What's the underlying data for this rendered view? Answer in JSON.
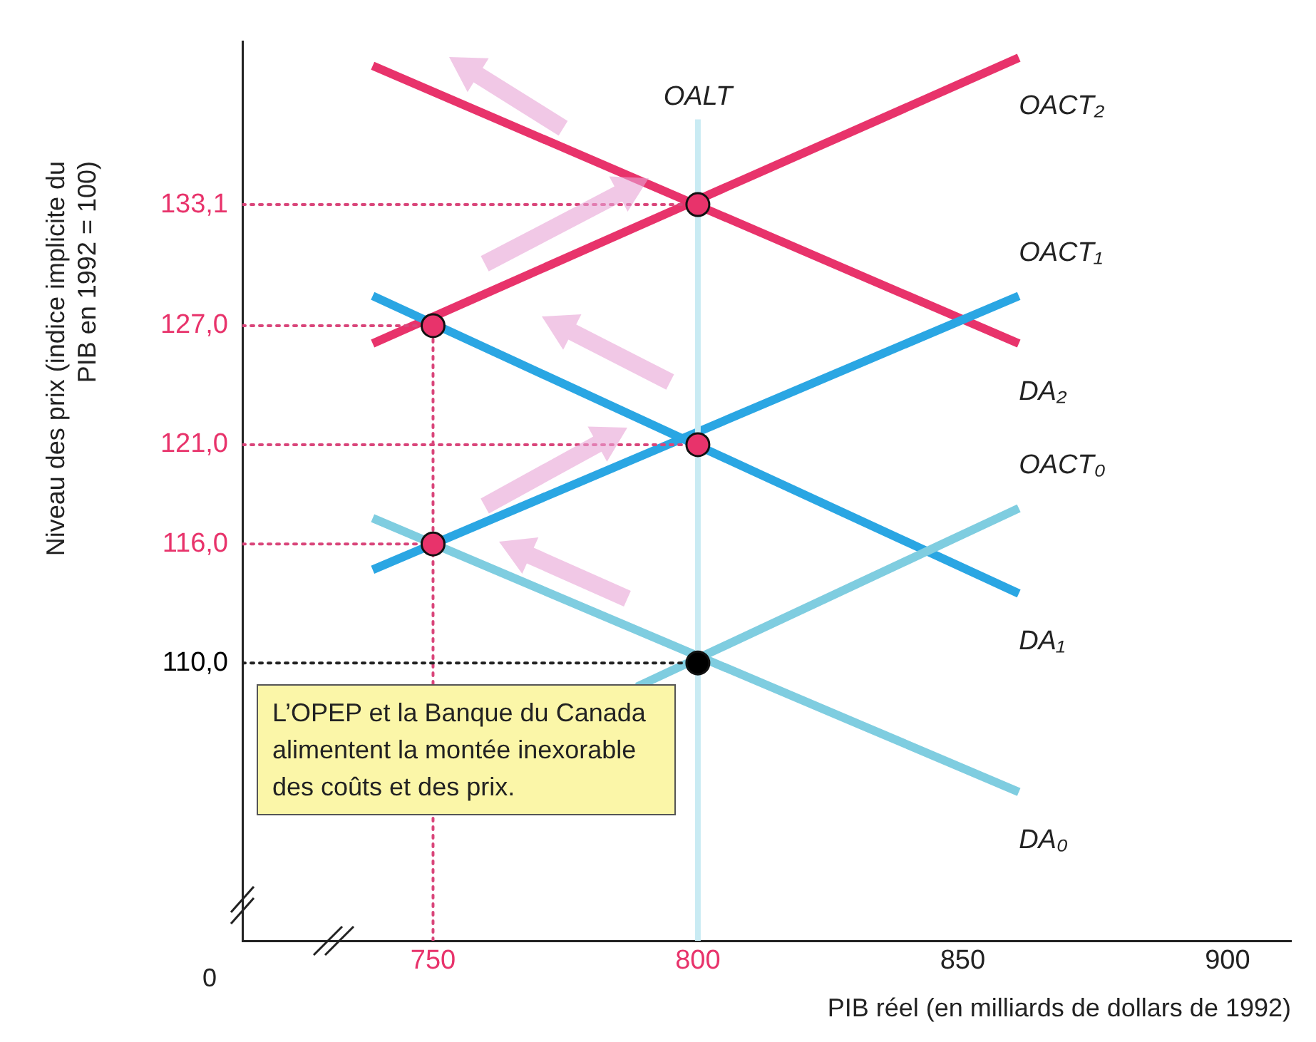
{
  "chart_data": {
    "type": "line",
    "xlabel": "PIB réel (en milliards de dollars de 1992)",
    "ylabel": "Niveau des prix (indice implicite du PIB en 1992 = 100)",
    "xlim": [
      714,
      912
    ],
    "ylim": [
      96,
      141.3
    ],
    "xticks": [
      750,
      800,
      850,
      900
    ],
    "yticks": [
      {
        "value": 110,
        "label": "110,0"
      },
      {
        "value": 116,
        "label": "116,0"
      },
      {
        "value": 121,
        "label": "121,0"
      },
      {
        "value": 127,
        "label": "127,0"
      },
      {
        "value": 133.1,
        "label": "133,1"
      }
    ],
    "grid": false,
    "legend": false,
    "marker": "none",
    "line_style": "solid",
    "series": [
      {
        "name": "OALT",
        "color": "#c9ebf3",
        "x": [
          800,
          800
        ],
        "values": [
          96,
          137.4
        ]
      },
      {
        "type": "line",
        "line_style": "dotted",
        "color": "#d9457a",
        "x": [
          714,
          800
        ],
        "values": [
          133.1,
          133.1
        ]
      },
      {
        "type": "line",
        "line_style": "dotted",
        "color": "#d9457a",
        "x": [
          714,
          750
        ],
        "values": [
          127,
          127
        ]
      },
      {
        "type": "line",
        "line_style": "dotted",
        "color": "#d9457a",
        "x": [
          714,
          800
        ],
        "values": [
          121,
          121
        ]
      },
      {
        "type": "line",
        "line_style": "dotted",
        "color": "#d9457a",
        "x": [
          714,
          750
        ],
        "values": [
          116,
          116
        ]
      },
      {
        "type": "line",
        "line_style": "dotted",
        "color": "#222222",
        "x": [
          714,
          800
        ],
        "values": [
          110,
          110
        ]
      },
      {
        "type": "line",
        "line_style": "dotted",
        "color": "#d9457a",
        "x": [
          750,
          750
        ],
        "values": [
          96,
          127
        ]
      },
      {
        "name": "DA₀",
        "color": "#7fcde0",
        "x": [
          738.6,
          860.6
        ],
        "values": [
          117.3,
          103.5
        ]
      },
      {
        "name": "OACT₀",
        "color": "#7fcde0",
        "x": [
          788.5,
          860.6
        ],
        "values": [
          108.8,
          117.8
        ]
      },
      {
        "name": "DA₁",
        "color": "#2aa6e3",
        "x": [
          738.6,
          860.6
        ],
        "values": [
          128.5,
          113.5
        ]
      },
      {
        "name": "OACT₁",
        "color": "#2aa6e3",
        "x": [
          738.6,
          860.6
        ],
        "values": [
          114.7,
          128.5
        ]
      },
      {
        "name": "DA₂",
        "color": "#e8336b",
        "x": [
          738.6,
          860.6
        ],
        "values": [
          140.1,
          126.1
        ]
      },
      {
        "name": "OACT₂",
        "color": "#e8336b",
        "x": [
          738.6,
          860.6
        ],
        "values": [
          126.1,
          140.5
        ]
      },
      {
        "type": "scatter",
        "marker": "circle",
        "color": "#e8336b",
        "x": [
          750,
          800,
          800,
          750
        ],
        "values": [
          127,
          133.1,
          121,
          116
        ]
      },
      {
        "type": "scatter",
        "marker": "circle",
        "color": "#000000",
        "x": [
          800
        ],
        "values": [
          110
        ]
      }
    ],
    "annotations": [
      "0",
      "L’OPEP et la Banque du Canada alimentent la montée inexorable des coûts et des prix."
    ]
  }
}
